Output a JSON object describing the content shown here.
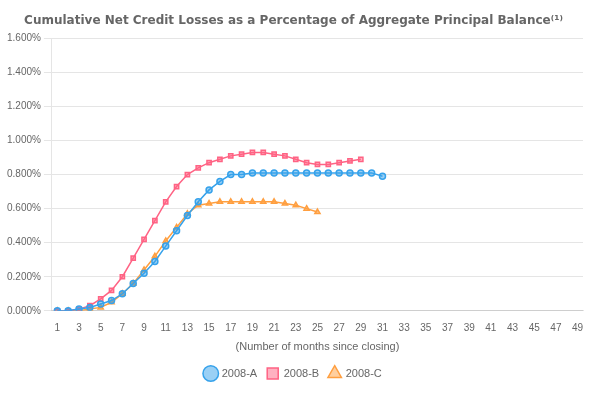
{
  "chart_data": {
    "type": "line",
    "title": "Cumulative Net Credit Losses as a Percentage of Aggregate Principal Balance⁽¹⁾",
    "xlabel": "(Number of months since closing)",
    "series": [
      {
        "name": "2008-A",
        "marker": "circle",
        "x": [
          1,
          2,
          3,
          4,
          5,
          6,
          7,
          8,
          9,
          10,
          11,
          12,
          13,
          14,
          15,
          16,
          17,
          18,
          19,
          20,
          21,
          22,
          23,
          24,
          25,
          26,
          27,
          28,
          29,
          30,
          31
        ],
        "values": [
          0.0,
          0.0,
          0.0001,
          0.0002,
          0.0004,
          0.0006,
          0.001,
          0.0016,
          0.0022,
          0.0029,
          0.0038,
          0.0047,
          0.0056,
          0.0064,
          0.0071,
          0.0076,
          0.008,
          0.008,
          0.0081,
          0.0081,
          0.0081,
          0.0081,
          0.0081,
          0.0081,
          0.0081,
          0.0081,
          0.0081,
          0.0081,
          0.0081,
          0.0081,
          0.0079
        ]
      },
      {
        "name": "2008-B",
        "marker": "square",
        "x": [
          1,
          2,
          3,
          4,
          5,
          6,
          7,
          8,
          9,
          10,
          11,
          12,
          13,
          14,
          15,
          16,
          17,
          18,
          19,
          20,
          21,
          22,
          23,
          24,
          25,
          26,
          27,
          28,
          29
        ],
        "values": [
          0.0,
          0.0,
          0.0001,
          0.0003,
          0.0007,
          0.0012,
          0.002,
          0.0031,
          0.0042,
          0.0053,
          0.0064,
          0.0073,
          0.008,
          0.0084,
          0.0087,
          0.0089,
          0.0091,
          0.0092,
          0.0093,
          0.0093,
          0.0092,
          0.0091,
          0.0089,
          0.0087,
          0.0086,
          0.0086,
          0.0087,
          0.0088,
          0.0089
        ]
      },
      {
        "name": "2008-C",
        "marker": "triangle",
        "x": [
          1,
          2,
          3,
          4,
          5,
          6,
          7,
          8,
          9,
          10,
          11,
          12,
          13,
          14,
          15,
          16,
          17,
          18,
          19,
          20,
          21,
          22,
          23,
          24,
          25
        ],
        "values": [
          0.0,
          0.0,
          0.0,
          0.0001,
          0.0002,
          0.0005,
          0.001,
          0.0016,
          0.0024,
          0.0032,
          0.0041,
          0.0049,
          0.0057,
          0.0062,
          0.0063,
          0.0064,
          0.0064,
          0.0064,
          0.0064,
          0.0064,
          0.0064,
          0.0063,
          0.0062,
          0.006,
          0.0058
        ]
      }
    ],
    "xlim": [
      0.5,
      49.5
    ],
    "xticks": [
      1,
      3,
      5,
      7,
      9,
      11,
      13,
      15,
      17,
      19,
      21,
      23,
      25,
      27,
      29,
      31,
      33,
      35,
      37,
      39,
      41,
      43,
      45,
      47,
      49
    ],
    "ylim": [
      0.0,
      0.016
    ],
    "yticks": [
      {
        "value": 0.0,
        "label": "0.000%"
      },
      {
        "value": 0.002,
        "label": "0.200%"
      },
      {
        "value": 0.004,
        "label": "0.400%"
      },
      {
        "value": 0.006,
        "label": "0.600%"
      },
      {
        "value": 0.008,
        "label": "0.800%"
      },
      {
        "value": 0.01,
        "label": "1.000%"
      },
      {
        "value": 0.012,
        "label": "1.200%"
      },
      {
        "value": 0.014,
        "label": "1.400%"
      },
      {
        "value": 0.016,
        "label": "1.600%"
      }
    ],
    "grid": "y",
    "legend": "bottom"
  }
}
